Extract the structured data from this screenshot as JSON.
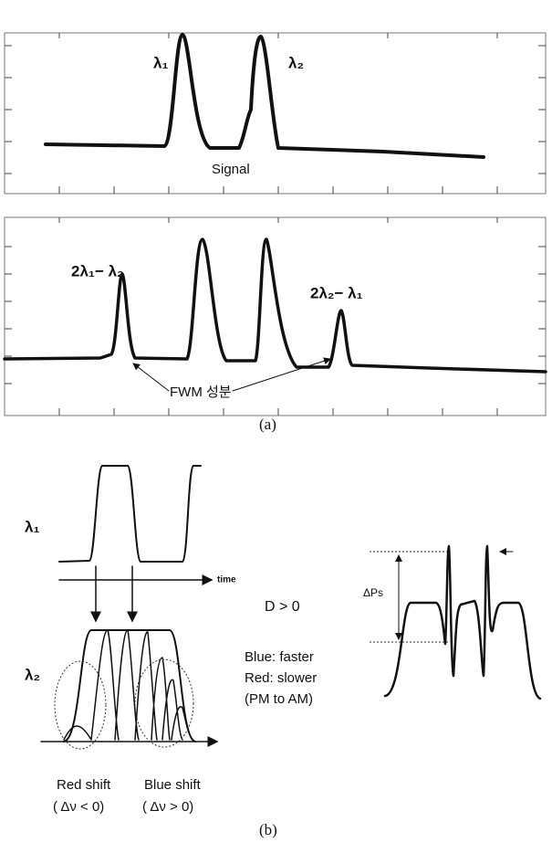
{
  "panel_a": {
    "top_plot": {
      "peak_labels": [
        "λ₁",
        "λ₂"
      ],
      "label": "Signal"
    },
    "bottom_plot": {
      "peak_labels": [
        "2λ₁− λ₂",
        "2λ₂− λ₁"
      ],
      "label": "FWM 성분"
    },
    "caption": "(a)"
  },
  "panel_b": {
    "input_label": "λ₁",
    "time_label": "time",
    "output_label": "λ₂",
    "dispersion": "D > 0",
    "notes": [
      "Blue: faster",
      "Red: slower",
      "(PM to AM)"
    ],
    "delta_label": "ΔPs",
    "shift_labels": [
      {
        "name": "Red shift",
        "condition": "( Δν < 0)"
      },
      {
        "name": "Blue shift",
        "condition": "( Δν > 0)"
      }
    ],
    "caption": "(b)"
  }
}
